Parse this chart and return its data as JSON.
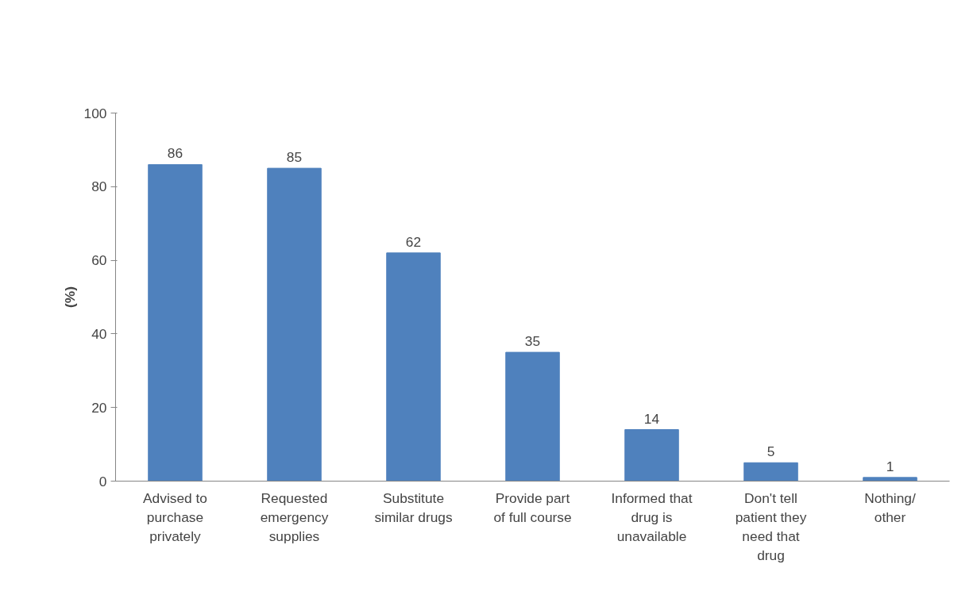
{
  "chart_data": {
    "type": "bar",
    "ylabel": "(%)",
    "categories": [
      "Advised to\npurchase\nprivately",
      "Requested\nemergency\nsupplies",
      "Substitute\nsimilar drugs",
      "Provide part\nof full course",
      "Informed that\ndrug is\nunavailable",
      "Don't tell\npatient they\nneed that\ndrug",
      "Nothing/\nother"
    ],
    "values": [
      86,
      85,
      62,
      35,
      14,
      5,
      1
    ],
    "color": "#4f81bd",
    "ylim": [
      0,
      100
    ],
    "yticks": [
      0,
      20,
      40,
      60,
      80,
      100
    ],
    "data_labels": true,
    "grid": false
  }
}
